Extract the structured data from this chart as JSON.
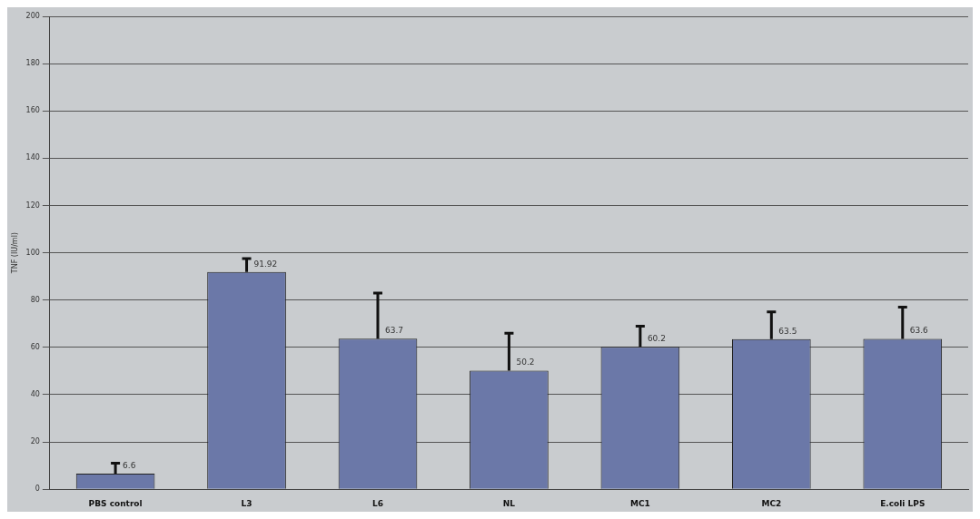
{
  "chart_data": {
    "type": "bar",
    "ylabel": "TNF (IU/ml)",
    "categories": [
      "PBS control",
      "L3",
      "L6",
      "NL",
      "MC1",
      "MC2",
      "E.coli LPS"
    ],
    "values": [
      6.6,
      91.92,
      63.7,
      50.2,
      60.2,
      63.5,
      63.6
    ],
    "errors": [
      [
        6.6,
        11
      ],
      [
        91.92,
        97.5
      ],
      [
        63.7,
        83
      ],
      [
        50.2,
        66
      ],
      [
        60.2,
        69
      ],
      [
        63.5,
        75
      ],
      [
        63.6,
        77
      ]
    ],
    "color": "#6b78a8",
    "data_labels": true,
    "ylim": [
      0,
      200
    ],
    "yticks": [
      0,
      20,
      40,
      60,
      80,
      100,
      120,
      140,
      160,
      180,
      200
    ],
    "grid": "y"
  }
}
